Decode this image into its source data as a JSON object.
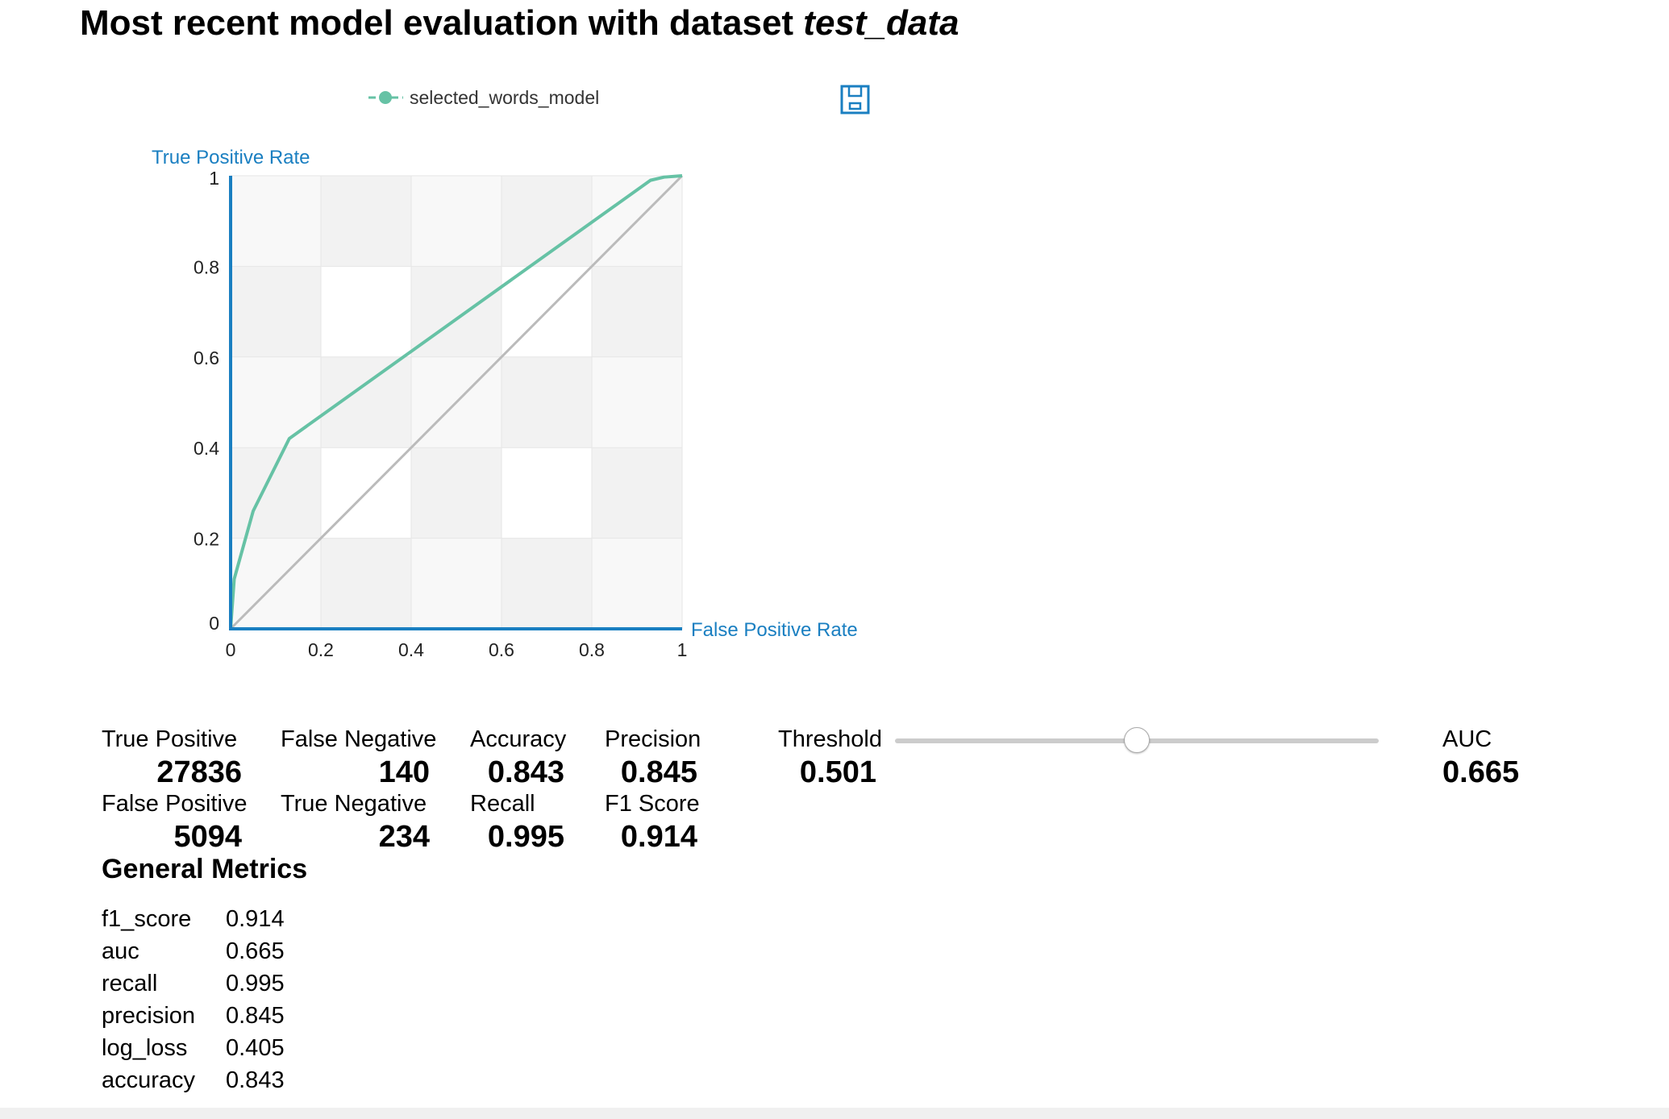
{
  "page": {
    "title_prefix": "Most recent model evaluation with dataset ",
    "dataset_name": "test_data"
  },
  "chart_data": {
    "type": "line",
    "title": "",
    "xlabel": "False Positive Rate",
    "ylabel": "True Positive Rate",
    "xlim": [
      0,
      1
    ],
    "ylim": [
      0,
      1
    ],
    "xticks": [
      "0",
      "0.2",
      "0.4",
      "0.6",
      "0.8",
      "1"
    ],
    "yticks": [
      "0",
      "0.2",
      "0.4",
      "0.6",
      "0.8",
      "1"
    ],
    "grid": true,
    "legend_position": "top",
    "series": [
      {
        "name": "selected_words_model",
        "color": "#66c2a5",
        "x": [
          0,
          0.008,
          0.05,
          0.13,
          0.93,
          0.96,
          1.0
        ],
        "y": [
          0,
          0.11,
          0.26,
          0.42,
          0.99,
          0.997,
          1.0
        ]
      }
    ],
    "reference_line": {
      "color": "#bbbbbb",
      "x": [
        0,
        1
      ],
      "y": [
        0,
        1
      ]
    },
    "save_icon": "save-floppy-icon"
  },
  "metrics": {
    "true_positive": {
      "label": "True Positive",
      "value": "27836"
    },
    "false_negative": {
      "label": "False Negative",
      "value": "140"
    },
    "false_positive": {
      "label": "False Positive",
      "value": "5094"
    },
    "true_negative": {
      "label": "True Negative",
      "value": "234"
    },
    "accuracy": {
      "label": "Accuracy",
      "value": "0.843"
    },
    "precision": {
      "label": "Precision",
      "value": "0.845"
    },
    "recall": {
      "label": "Recall",
      "value": "0.995"
    },
    "f1_score": {
      "label": "F1 Score",
      "value": "0.914"
    },
    "threshold": {
      "label": "Threshold",
      "value": "0.501",
      "slider_fraction": 0.5
    },
    "auc": {
      "label": "AUC",
      "value": "0.665"
    }
  },
  "general": {
    "title": "General Metrics",
    "rows": [
      {
        "key": "f1_score",
        "value": "0.914"
      },
      {
        "key": "auc",
        "value": "0.665"
      },
      {
        "key": "recall",
        "value": "0.995"
      },
      {
        "key": "precision",
        "value": "0.845"
      },
      {
        "key": "log_loss",
        "value": "0.405"
      },
      {
        "key": "accuracy",
        "value": "0.843"
      }
    ]
  },
  "colors": {
    "axis": "#1a7fc1",
    "series": "#66c2a5",
    "reference": "#bbbbbb",
    "band_dark": "#f2f2f2",
    "band_light": "#f8f8f8"
  }
}
